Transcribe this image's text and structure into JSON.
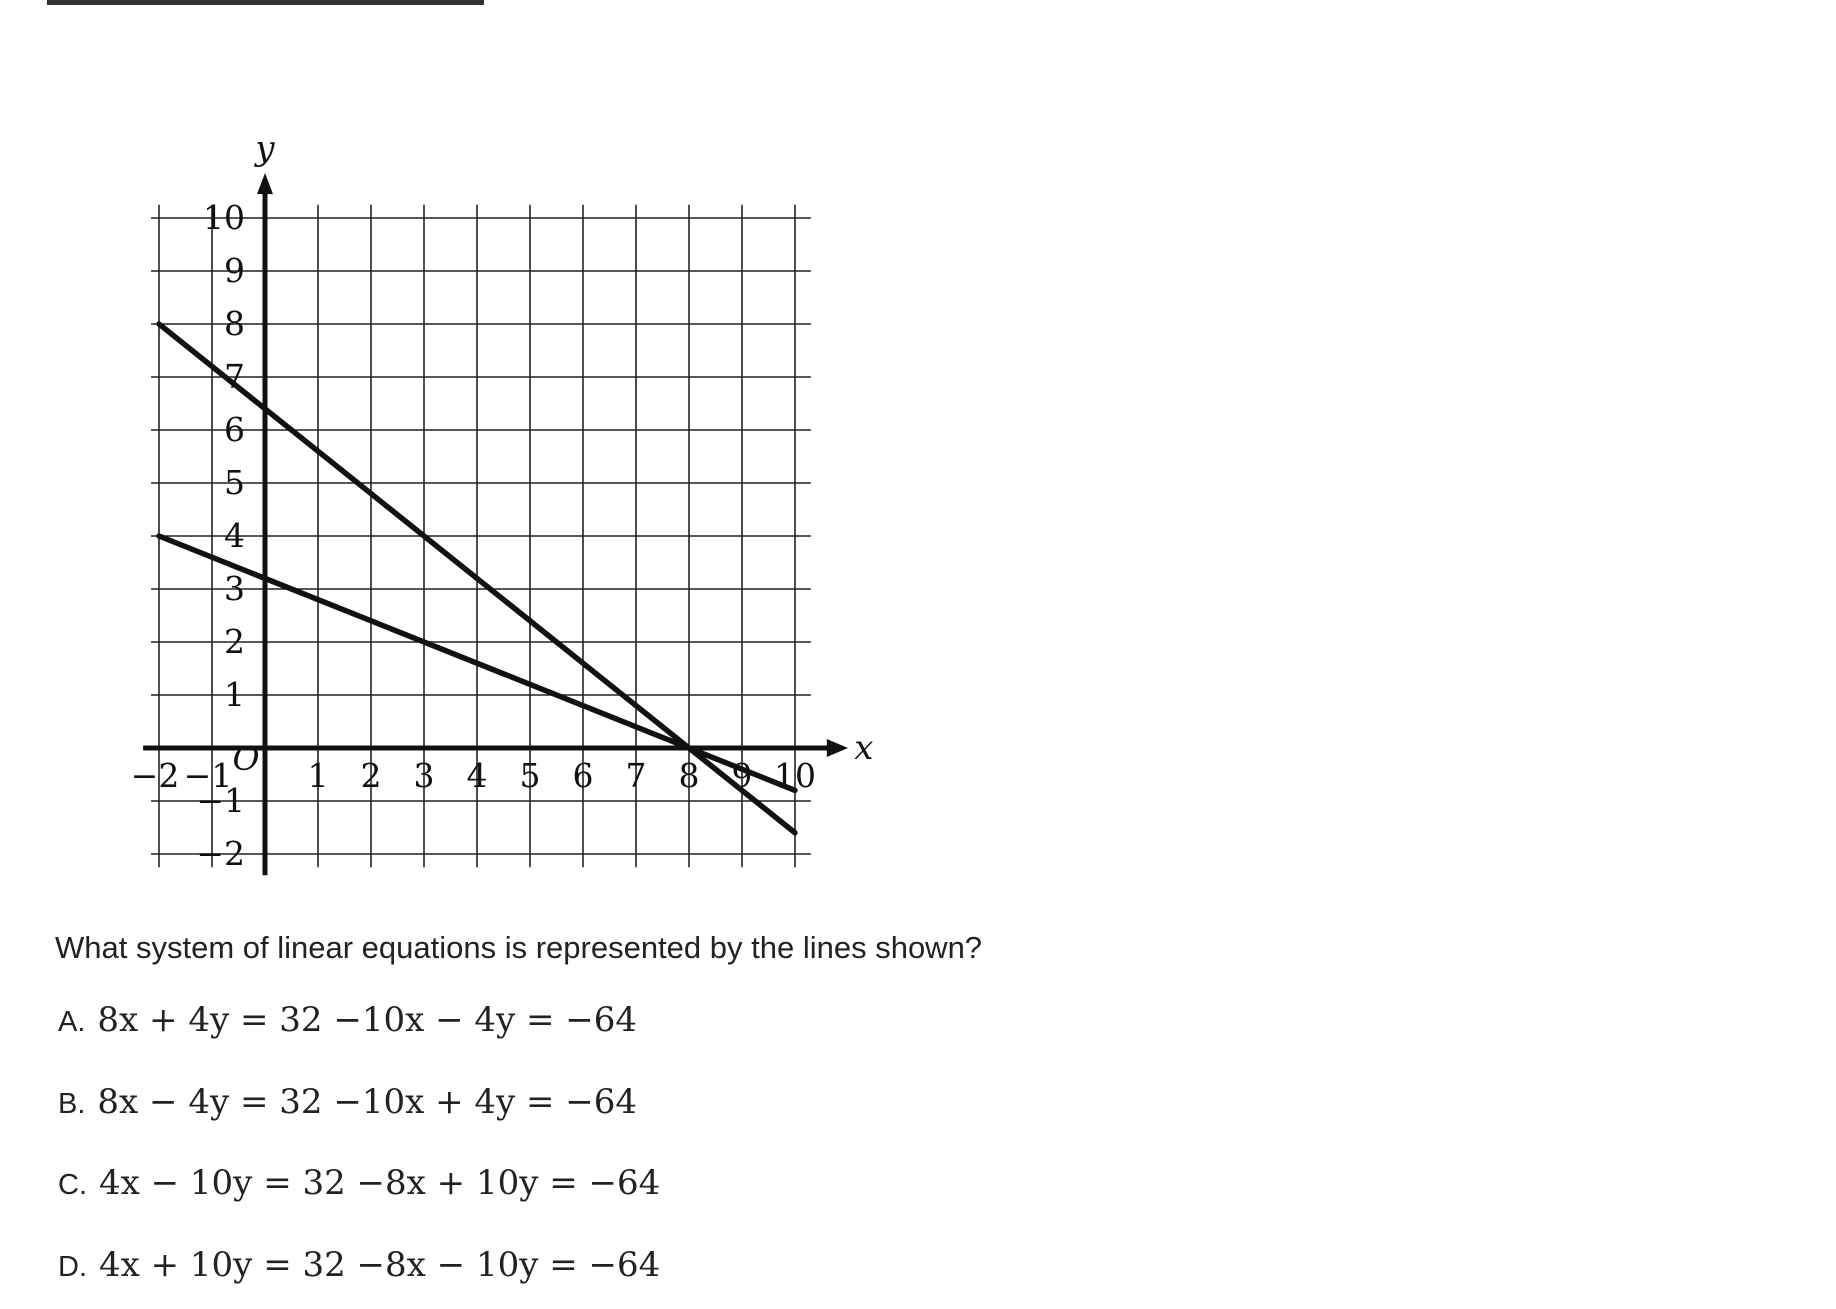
{
  "question": {
    "text": "What system of linear equations is represented by the lines shown?",
    "options": [
      {
        "letter": "A.",
        "equation": "8x + 4y = 32 −10x − 4y = −64"
      },
      {
        "letter": "B.",
        "equation": "8x − 4y = 32 −10x + 4y = −64"
      },
      {
        "letter": "C.",
        "equation": "4x − 10y = 32 −8x + 10y = −64"
      },
      {
        "letter": "D.",
        "equation": "4x + 10y = 32 −8x − 10y = −64"
      }
    ]
  },
  "chart_data": {
    "type": "line",
    "title": "",
    "xlabel": "x",
    "ylabel": "y",
    "origin_label": "O",
    "xlim": [
      -2,
      10
    ],
    "ylim": [
      -2,
      10
    ],
    "x_ticks": [
      -2,
      -1,
      1,
      2,
      3,
      4,
      5,
      6,
      7,
      8,
      9,
      10
    ],
    "y_ticks": [
      -2,
      -1,
      1,
      2,
      3,
      4,
      5,
      6,
      7,
      8,
      9,
      10
    ],
    "x_tick_labels": [
      "−2",
      "−1",
      "1",
      "2",
      "3",
      "4",
      "5",
      "6",
      "7",
      "8",
      "9",
      "10"
    ],
    "y_tick_labels": [
      "−2",
      "−1",
      "1",
      "2",
      "3",
      "4",
      "5",
      "6",
      "7",
      "8",
      "9",
      "10"
    ],
    "grid": true,
    "line_color": "#111111",
    "series": [
      {
        "x": [
          -2,
          8,
          10
        ],
        "y": [
          8,
          0,
          -1.6
        ]
      },
      {
        "x": [
          -2,
          8,
          10
        ],
        "y": [
          4,
          0,
          -0.8
        ]
      }
    ]
  }
}
